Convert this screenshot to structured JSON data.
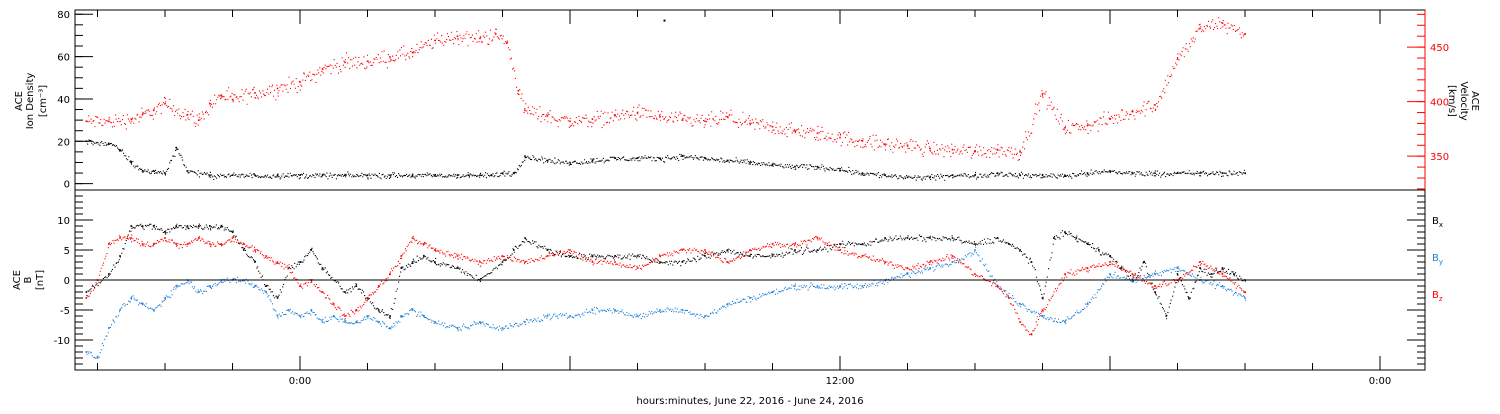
{
  "chart_data": [
    {
      "type": "scatter",
      "panel": "top",
      "left_axis": {
        "lines": [
          "ACE",
          "Ion Density",
          "[cm⁻³]"
        ],
        "ylim": [
          -3,
          82
        ],
        "ticks": [
          0,
          20,
          40,
          60,
          80
        ],
        "tick_labels": [
          "0",
          "20",
          "40",
          "60",
          "80"
        ]
      },
      "right_axis": {
        "lines": [
          "ACE",
          "Velocity",
          "[km/s]"
        ],
        "ylim": [
          319,
          484
        ],
        "ticks": [
          350,
          400,
          450
        ],
        "tick_labels": [
          "350",
          "400",
          "450"
        ],
        "color": "#ff0000"
      },
      "series": [
        {
          "color": "#ff0000",
          "axis": "right",
          "x": [
            -9.5,
            -8.5,
            -7.5,
            -7,
            -6.5,
            -6,
            -5,
            -4.5,
            -4,
            -3.5,
            -3,
            -2,
            -1,
            0,
            1,
            2,
            3,
            4,
            5,
            6,
            7,
            8,
            8.7,
            9.2,
            9.7,
            10,
            11,
            12,
            13,
            14,
            15,
            16,
            17,
            18,
            19,
            20,
            21,
            22,
            23,
            24,
            25,
            26,
            27,
            28,
            29,
            30,
            31,
            32,
            33,
            34,
            35,
            36,
            37,
            38,
            39,
            40,
            41,
            42
          ],
          "y": [
            382,
            382,
            384,
            388,
            392,
            398,
            388,
            383,
            398,
            406,
            402,
            408,
            412,
            418,
            430,
            436,
            437,
            441,
            445,
            456,
            460,
            458,
            462,
            454,
            410,
            392,
            387,
            382,
            384,
            387,
            390,
            386,
            383,
            382,
            386,
            380,
            377,
            373,
            371,
            367,
            364,
            361,
            360,
            357,
            356,
            355,
            356,
            354,
            407,
            376,
            378,
            384,
            391,
            397,
            439,
            467,
            472,
            462
          ]
        },
        {
          "color": "#000000",
          "axis": "left",
          "x": [
            -9.5,
            -8.5,
            -8,
            -7.5,
            -7,
            -6.5,
            -6,
            -5.5,
            -5,
            -4,
            -3,
            -2,
            -1,
            0,
            1,
            2,
            3,
            4,
            5,
            6,
            7,
            7.5,
            8,
            8.5,
            9,
            9.5,
            10,
            11,
            12,
            13,
            14,
            15,
            16,
            17,
            18,
            19,
            20,
            21,
            22,
            23,
            24,
            25,
            26,
            27,
            28,
            29,
            30,
            31,
            32,
            33,
            34,
            35,
            36,
            37,
            38,
            39,
            40,
            41,
            42
          ],
          "y": [
            20,
            19,
            16,
            10,
            6,
            6,
            5,
            17,
            6,
            4,
            4,
            4,
            4,
            4,
            4,
            4,
            4,
            4,
            4,
            4,
            4,
            4,
            4,
            4,
            5,
            5,
            13,
            11,
            10,
            11,
            12,
            12,
            12,
            13,
            12,
            11,
            10,
            9,
            8,
            8,
            7,
            5,
            4,
            3,
            3,
            4,
            4,
            5,
            4,
            4,
            4,
            5,
            6,
            5,
            5,
            5,
            5,
            5,
            5
          ]
        }
      ],
      "annotations": [
        {
          "x": 16.2,
          "y": 77,
          "color": "#000000"
        }
      ]
    },
    {
      "type": "scatter",
      "panel": "bottom",
      "left_axis": {
        "lines": [
          "ACE",
          "B",
          "[nT]"
        ],
        "ylim": [
          -15,
          15
        ],
        "ticks": [
          -10,
          -5,
          0,
          5,
          10
        ],
        "tick_labels": [
          "-10",
          "-5",
          "0",
          "5",
          "10"
        ]
      },
      "zero_line": 0,
      "series": [
        {
          "name": "Bx",
          "legend_main": "B",
          "legend_sub": "x",
          "color": "#000000",
          "x": [
            -9.5,
            -8.5,
            -8,
            -7.5,
            -7,
            -6.5,
            -6,
            -5.5,
            -5,
            -4.5,
            -4,
            -3.5,
            -3,
            -2.5,
            -2,
            -1.5,
            -1,
            -0.5,
            0,
            0.5,
            1,
            2,
            2.5,
            3,
            3.5,
            4,
            4.5,
            5,
            5.5,
            6,
            7,
            8,
            9,
            9.5,
            10,
            11,
            12,
            13,
            14,
            15,
            16,
            17,
            18,
            19,
            20,
            21,
            22,
            23,
            24,
            25,
            26,
            27,
            28,
            29,
            30,
            31,
            31.5,
            32,
            32.5,
            33,
            33.5,
            34,
            34.5,
            35,
            35.5,
            36,
            36.5,
            37,
            37.5,
            38,
            38.5,
            39,
            39.5,
            40,
            40.5,
            41,
            41.5,
            42
          ],
          "y": [
            -2,
            1,
            4,
            9,
            9,
            9,
            8,
            9,
            9,
            9,
            9,
            9,
            8,
            5,
            3,
            -1,
            -3,
            2,
            3,
            5,
            2,
            -2,
            -1,
            -3,
            -5,
            -6,
            2,
            3,
            4,
            3,
            2,
            0,
            3,
            5,
            7,
            5,
            4,
            4,
            4,
            4,
            3,
            3,
            4,
            5,
            4,
            4,
            5,
            5,
            6,
            6,
            7,
            7,
            7,
            7,
            6,
            7,
            6,
            5,
            3,
            -3,
            7,
            8,
            7,
            6,
            5,
            4,
            2,
            0,
            3,
            -2,
            -6,
            1,
            -3,
            2,
            1,
            2,
            1,
            0
          ]
        },
        {
          "name": "By",
          "legend_main": "B",
          "legend_sub": "y",
          "color": "#1e7fd6",
          "x": [
            -9.5,
            -9,
            -8.5,
            -8,
            -7.5,
            -7,
            -6.5,
            -6,
            -5.5,
            -5,
            -4.5,
            -4,
            -3.5,
            -3,
            -2.5,
            -2,
            -1.5,
            -1,
            -0.5,
            0,
            0.5,
            1,
            1.5,
            2,
            2.5,
            3,
            3.5,
            4,
            4.5,
            5,
            5.5,
            6,
            7,
            8,
            9,
            10,
            11,
            12,
            13,
            14,
            15,
            16,
            17,
            18,
            19,
            20,
            21,
            22,
            23,
            24,
            25,
            26,
            27,
            28,
            29,
            30,
            31,
            32,
            33,
            34,
            35,
            36,
            37,
            38,
            39,
            40,
            41,
            42
          ],
          "y": [
            -12,
            -13,
            -8,
            -5,
            -3,
            -4,
            -5,
            -3,
            -1,
            0,
            -2,
            -1,
            0,
            0,
            0,
            -1,
            -2,
            -6,
            -5,
            -6,
            -5,
            -7,
            -6,
            -7,
            -7,
            -6,
            -7,
            -8,
            -6,
            -5,
            -6,
            -7,
            -8,
            -7,
            -8,
            -7,
            -6,
            -6,
            -5,
            -5,
            -6,
            -5,
            -5,
            -6,
            -4,
            -3,
            -2,
            -1,
            -1,
            -1,
            -1,
            0,
            1,
            2,
            3,
            5,
            -1,
            -4,
            -6,
            -7,
            -4,
            1,
            0,
            1,
            2,
            0,
            -1,
            -3
          ]
        },
        {
          "name": "Bz",
          "legend_main": "B",
          "legend_sub": "z",
          "color": "#ff0000",
          "x": [
            -9.5,
            -9,
            -8.5,
            -8,
            -7.5,
            -7,
            -6.5,
            -6,
            -5.5,
            -5,
            -4.5,
            -4,
            -3.5,
            -3,
            -2.5,
            -2,
            -1.5,
            -1,
            -0.5,
            0,
            0.5,
            1,
            1.5,
            2,
            2.5,
            3,
            3.5,
            4,
            4.5,
            5,
            5.5,
            6,
            7,
            8,
            9,
            10,
            11,
            12,
            13,
            14,
            15,
            16,
            17,
            18,
            19,
            20,
            21,
            22,
            23,
            24,
            25,
            26,
            27,
            28,
            29,
            30,
            31,
            31.5,
            32,
            32.5,
            33,
            34,
            35,
            36,
            37,
            38,
            39,
            40,
            41,
            42
          ],
          "y": [
            -3,
            0,
            6,
            7,
            7,
            6,
            6,
            7,
            6,
            6,
            7,
            6,
            6,
            7,
            6,
            5,
            4,
            3,
            2,
            -1,
            0,
            -2,
            -4,
            -6,
            -5,
            -3,
            -1,
            1,
            4,
            7,
            6,
            5,
            4,
            3,
            4,
            3,
            4,
            5,
            3,
            3,
            2,
            4,
            5,
            5,
            3,
            5,
            6,
            6,
            7,
            5,
            4,
            3,
            2,
            3,
            4,
            1,
            -1,
            -3,
            -7,
            -9,
            -5,
            1,
            2,
            3,
            1,
            -1,
            0,
            3,
            1,
            -2
          ]
        }
      ]
    }
  ],
  "x_axis": {
    "xlim": [
      -10,
      50
    ],
    "major_ticks": [
      0,
      24,
      48
    ],
    "tick_labels": [
      "0:00",
      "12:00",
      "0:00"
    ],
    "label": "hours:minutes, June 22, 2016 - June 24, 2016"
  }
}
